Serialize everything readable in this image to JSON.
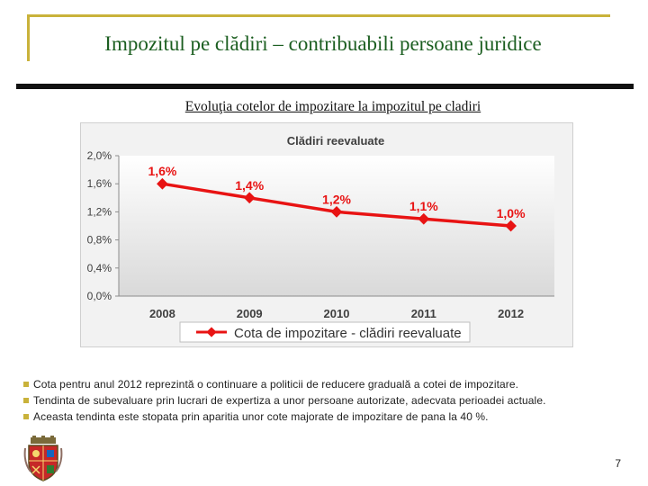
{
  "slide": {
    "title": "Impozitul pe clădiri – contribuabili persoane juridice",
    "subtitle": "Evoluţia cotelor de impozitare la impozitul pe cladiri",
    "page_number": "7",
    "bullets": [
      "Cota pentru anul 2012 reprezintă o continuare a politicii de reducere graduală a cotei de impozitare.",
      "Tendinta de subevaluare prin lucrari de expertiza a unor persoane autorizate, adecvata perioadei actuale.",
      "Aceasta tendinta este stopata prin aparitia unor cote majorate de impozitare de pana la 40 %."
    ]
  },
  "colors": {
    "title": "#1b5e20",
    "accent": "#c9b23a",
    "series": "#e81313"
  },
  "chart_data": {
    "type": "line",
    "title": "Clădiri reevaluate",
    "categories": [
      "2008",
      "2009",
      "2010",
      "2011",
      "2012"
    ],
    "series": [
      {
        "name": "Cota de impozitare - clădiri reevaluate",
        "values": [
          1.6,
          1.4,
          1.2,
          1.1,
          1.0
        ],
        "labels": [
          "1,6%",
          "1,4%",
          "1,2%",
          "1,1%",
          "1,0%"
        ]
      }
    ],
    "yticks": [
      "0,0%",
      "0,4%",
      "0,8%",
      "1,2%",
      "1,6%",
      "2,0%"
    ],
    "ytick_values": [
      0,
      0.4,
      0.8,
      1.2,
      1.6,
      2.0
    ],
    "ylim": [
      0,
      2.0
    ],
    "xlabel": "",
    "ylabel": "",
    "legend_position": "bottom",
    "grid": false
  }
}
